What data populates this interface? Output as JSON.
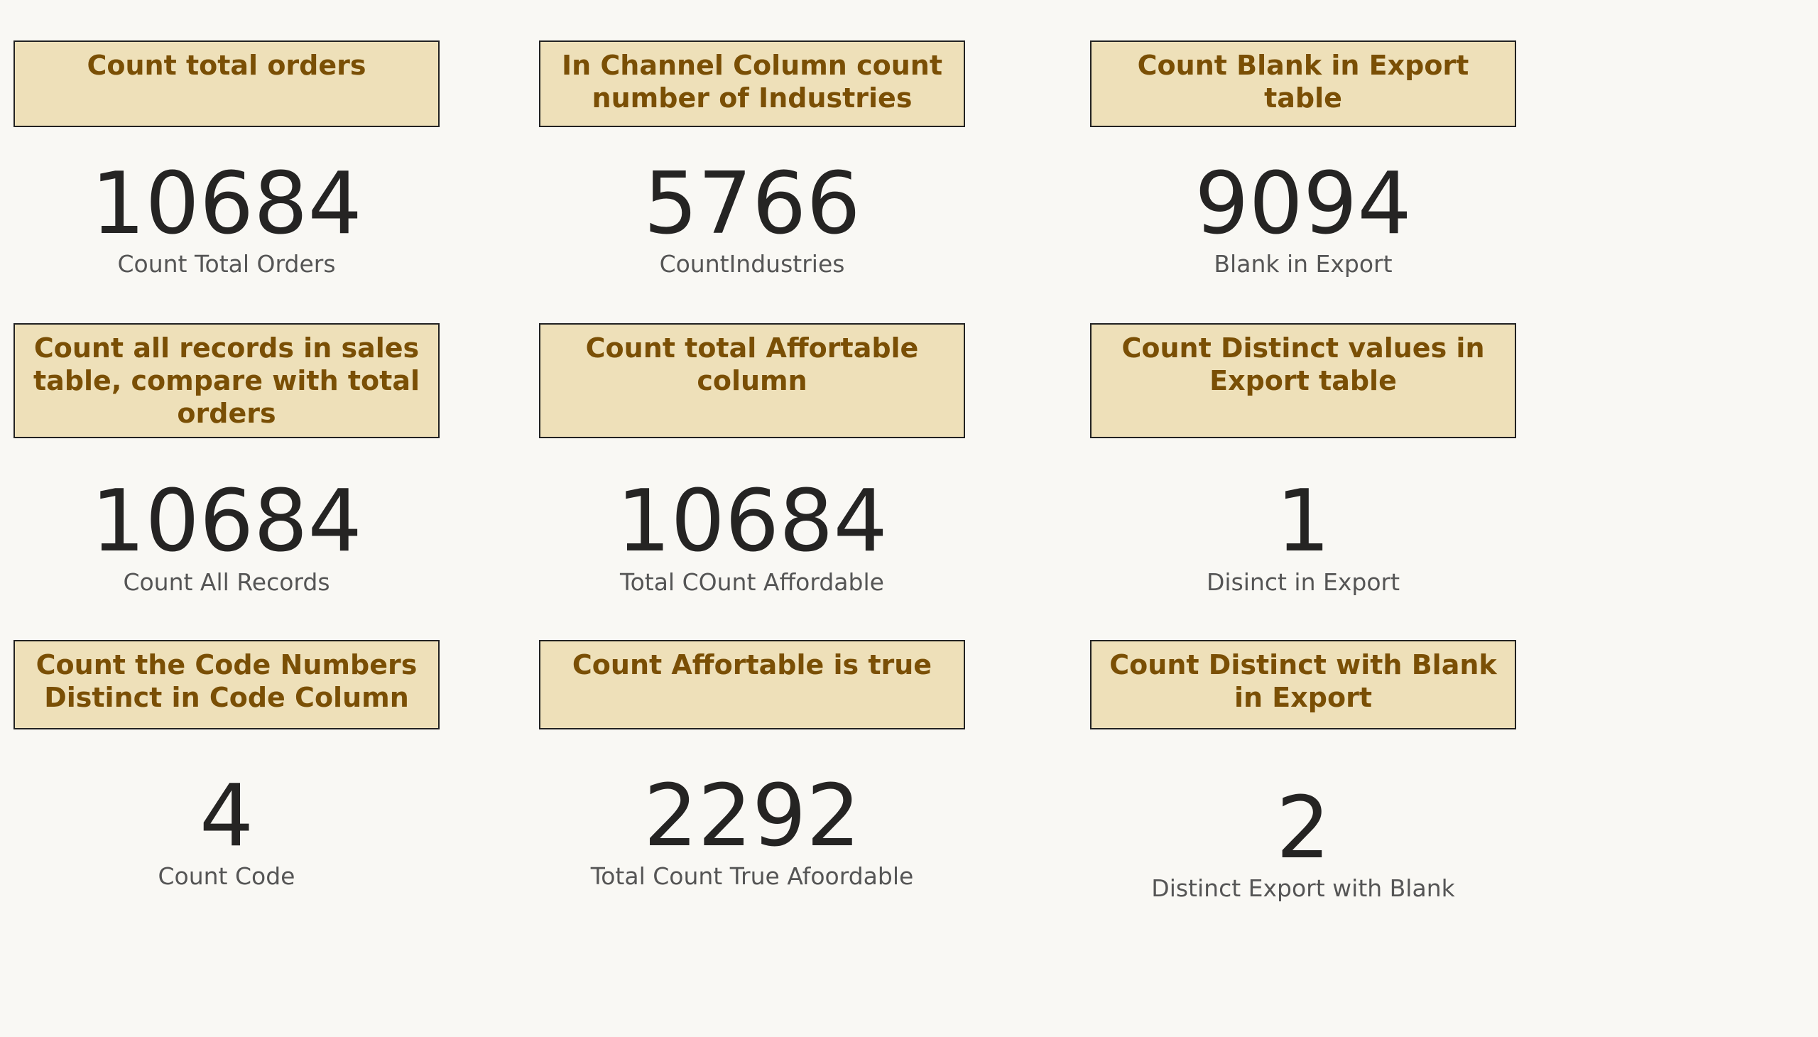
{
  "cards": [
    {
      "header": "Count total orders",
      "value": "10684",
      "label": "Count Total Orders"
    },
    {
      "header": "In Channel Column count number of Industries",
      "value": "5766",
      "label": "CountIndustries"
    },
    {
      "header": "Count Blank in Export table",
      "value": "9094",
      "label": "Blank in Export"
    },
    {
      "header": "Count all records in sales table, compare with total orders",
      "value": "10684",
      "label": "Count All Records"
    },
    {
      "header": "Count total Affortable column",
      "value": "10684",
      "label": "Total COunt Affordable"
    },
    {
      "header": "Count Distinct values in Export table",
      "value": "1",
      "label": "Disinct in Export"
    },
    {
      "header": "Count the Code Numbers Distinct in Code Column",
      "value": "4",
      "label": "Count Code"
    },
    {
      "header": "Count Affortable is true",
      "value": "2292",
      "label": "Total Count True Afoordable"
    },
    {
      "header": "Count Distinct with Blank in Export",
      "value": "2",
      "label": "Distinct Export with Blank"
    }
  ]
}
